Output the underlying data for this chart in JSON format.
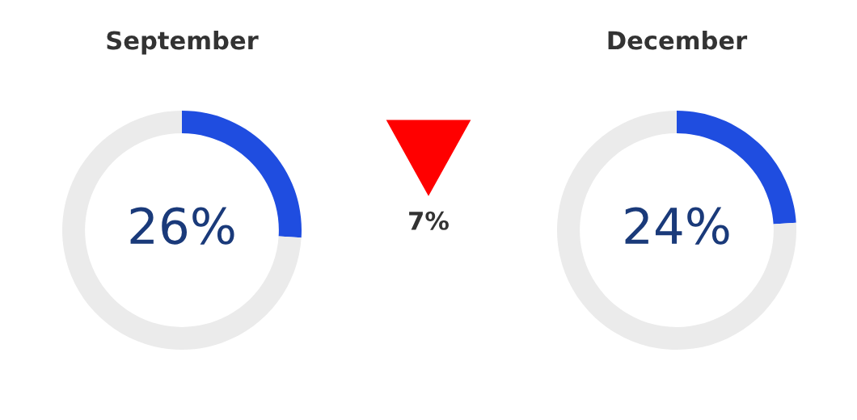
{
  "chart_data": [
    {
      "type": "donut",
      "title": "September",
      "categories": [
        null,
        null
      ],
      "values": [
        26,
        74
      ],
      "colors": [
        "#1f4de0",
        "#ebebeb"
      ],
      "annotations": [
        "26%"
      ]
    },
    {
      "type": "other",
      "annotations": [
        "7%"
      ]
    },
    {
      "type": "donut",
      "title": "December",
      "categories": [
        null,
        null
      ],
      "values": [
        24,
        76
      ],
      "colors": [
        "#1f4de0",
        "#ebebeb"
      ],
      "annotations": [
        "24%"
      ]
    }
  ]
}
